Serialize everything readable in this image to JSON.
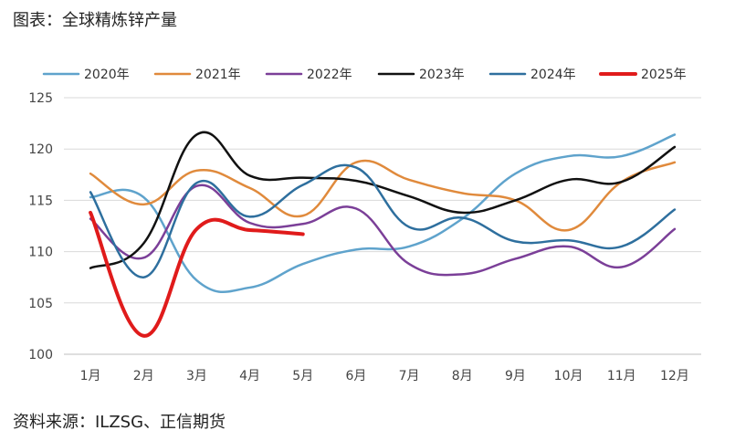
{
  "header": {
    "title": "图表：全球精炼锌产量"
  },
  "footer": {
    "source": "资料来源：ILZSG、正信期货"
  },
  "chart_data": {
    "type": "line",
    "categories": [
      "1月",
      "2月",
      "3月",
      "4月",
      "5月",
      "6月",
      "7月",
      "8月",
      "9月",
      "10月",
      "11月",
      "12月"
    ],
    "ylim": [
      100,
      125
    ],
    "yticks": [
      100,
      105,
      110,
      115,
      120,
      125
    ],
    "grid": true,
    "legend_position": "top",
    "series": [
      {
        "name": "2020年",
        "color": "#5fa3cc",
        "width": 2.5,
        "values": [
          115.3,
          115.3,
          107.2,
          106.5,
          108.8,
          110.2,
          110.5,
          113.2,
          117.6,
          119.3,
          119.3,
          121.4
        ]
      },
      {
        "name": "2021年",
        "color": "#e08a3c",
        "width": 2.5,
        "values": [
          117.6,
          114.6,
          117.9,
          116.2,
          113.5,
          118.7,
          117.0,
          115.7,
          115.0,
          112.1,
          116.8,
          118.7
        ]
      },
      {
        "name": "2022年",
        "color": "#7b3f98",
        "width": 2.5,
        "values": [
          113.2,
          109.4,
          116.4,
          112.8,
          112.7,
          114.2,
          108.8,
          107.8,
          109.3,
          110.5,
          108.5,
          112.2
        ]
      },
      {
        "name": "2023年",
        "color": "#111111",
        "width": 2.5,
        "values": [
          108.4,
          110.8,
          121.4,
          117.4,
          117.2,
          116.9,
          115.4,
          113.8,
          115.0,
          117.0,
          116.8,
          120.2
        ]
      },
      {
        "name": "2024年",
        "color": "#2e6f9e",
        "width": 2.5,
        "values": [
          115.8,
          107.5,
          116.7,
          113.4,
          116.5,
          118.2,
          112.4,
          113.3,
          111.0,
          111.1,
          110.5,
          114.1
        ]
      },
      {
        "name": "2025年",
        "color": "#e01b1b",
        "width": 4,
        "values": [
          113.8,
          101.8,
          112.2,
          112.1,
          111.7,
          null,
          null,
          null,
          null,
          null,
          null,
          null
        ]
      }
    ]
  }
}
